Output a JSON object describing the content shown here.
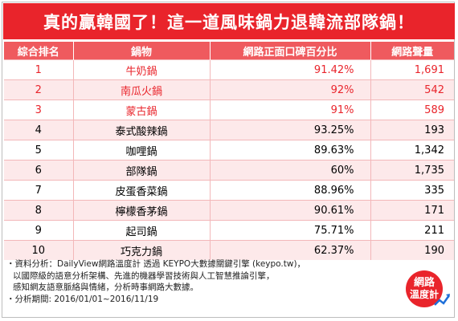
{
  "title": "真的贏韓國了！這一道風味鍋力退韓流部隊鍋！",
  "table": {
    "headers": [
      "綜合排名",
      "鍋物",
      "網路正面口碑百分比",
      "網路聲量"
    ],
    "rows": [
      {
        "rank": "1",
        "dish": "牛奶鍋",
        "positive": "91.42%",
        "volume": "1,691"
      },
      {
        "rank": "2",
        "dish": "南瓜火鍋",
        "positive": "92%",
        "volume": "542"
      },
      {
        "rank": "3",
        "dish": "蒙古鍋",
        "positive": "91%",
        "volume": "589"
      },
      {
        "rank": "4",
        "dish": "泰式酸辣鍋",
        "positive": "93.25%",
        "volume": "193"
      },
      {
        "rank": "5",
        "dish": "咖哩鍋",
        "positive": "89.63%",
        "volume": "1,342"
      },
      {
        "rank": "6",
        "dish": "部隊鍋",
        "positive": "60%",
        "volume": "1,735"
      },
      {
        "rank": "7",
        "dish": "皮蛋香菜鍋",
        "positive": "88.96%",
        "volume": "335"
      },
      {
        "rank": "8",
        "dish": "檸檬香茅鍋",
        "positive": "90.61%",
        "volume": "171"
      },
      {
        "rank": "9",
        "dish": "起司鍋",
        "positive": "75.71%",
        "volume": "211"
      },
      {
        "rank": "10",
        "dish": "巧克力鍋",
        "positive": "62.37%",
        "volume": "190"
      }
    ]
  },
  "footer": {
    "lines": [
      "・資料分析：DailyView網路溫度計 透過 KEYPO大數據關鍵引擎 (keypo.tw)，",
      "  以國際級的語意分析架構、先進的機器學習技術與人工智慧推論引擎，",
      "  感知網友語意脈絡與情緒，分析時事網路大數據。",
      "・分析期間: 2016/01/01~2016/11/19"
    ]
  },
  "logo": {
    "line1": "網路",
    "line2": "溫度計"
  },
  "colors": {
    "brand_red": "#e9242b",
    "header_pink": "#ef5a5e",
    "row_pink": "#fde9ea"
  }
}
